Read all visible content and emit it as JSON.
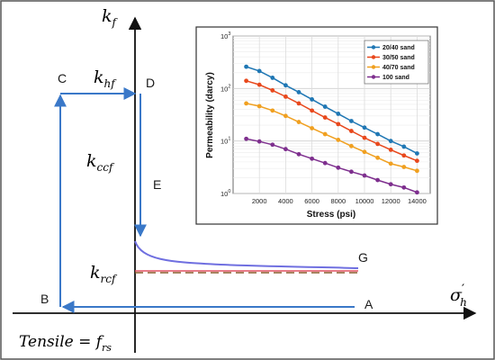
{
  "chart_data": [
    {
      "type": "line",
      "title": "",
      "xlabel": "σ'h",
      "ylabel": "kf",
      "annotations": {
        "kf": "k",
        "kf_sub": "f",
        "khf": "k",
        "khf_sub": "hf",
        "kccf": "k",
        "kccf_sub": "ccf",
        "krcf": "k",
        "krcf_sub": "rcf",
        "sigma": "σ",
        "sigma_sub": "h",
        "sigma_prime": "′",
        "tensile": "Tensile = ",
        "tensile_f": "f",
        "tensile_sub": "rs"
      },
      "points": [
        "A",
        "B",
        "C",
        "D",
        "E",
        "G"
      ],
      "colors": {
        "loading_path": "#3a78c8",
        "decay_curve": "#6f6fe0",
        "residual_dashed": "#8a5a2a",
        "residual_solid": "#e05060",
        "axes": "#111111"
      }
    },
    {
      "type": "line",
      "xlabel": "Stress (psi)",
      "ylabel": "Permeability (darcy)",
      "xlim": [
        0,
        15000
      ],
      "xticks": [
        2000,
        4000,
        6000,
        8000,
        10000,
        12000,
        14000
      ],
      "ylim": [
        1,
        1000
      ],
      "yscale": "log",
      "yticks": [
        {
          "value": 1,
          "base": "10",
          "exp": "0"
        },
        {
          "value": 10,
          "base": "10",
          "exp": "1"
        },
        {
          "value": 100,
          "base": "10",
          "exp": "2"
        },
        {
          "value": 1000,
          "base": "10",
          "exp": "3"
        }
      ],
      "grid": true,
      "legend_position": "top-right",
      "x": [
        1000,
        2000,
        3000,
        4000,
        5000,
        6000,
        7000,
        8000,
        9000,
        10000,
        11000,
        12000,
        13000,
        14000
      ],
      "series": [
        {
          "name": "20/40 sand",
          "color": "#1f77b4",
          "values": [
            260,
            215,
            160,
            115,
            85,
            62,
            45,
            33,
            24,
            18,
            13.5,
            10,
            7.8,
            5.8
          ]
        },
        {
          "name": "30/50 sand",
          "color": "#e8481c",
          "values": [
            140,
            118,
            92,
            70,
            52,
            38,
            28,
            21,
            15.5,
            11.5,
            8.8,
            6.8,
            5.3,
            4.2
          ]
        },
        {
          "name": "40/70 sand",
          "color": "#f0a020",
          "values": [
            52,
            46,
            38,
            30,
            23,
            17.5,
            13.5,
            10.5,
            8,
            6.2,
            4.8,
            3.7,
            3.2,
            2.7
          ]
        },
        {
          "name": "100 sand",
          "color": "#7e2f8e",
          "values": [
            11,
            9.8,
            8.5,
            7,
            5.6,
            4.6,
            3.8,
            3.1,
            2.6,
            2.2,
            1.8,
            1.5,
            1.3,
            1.05
          ]
        }
      ]
    }
  ]
}
